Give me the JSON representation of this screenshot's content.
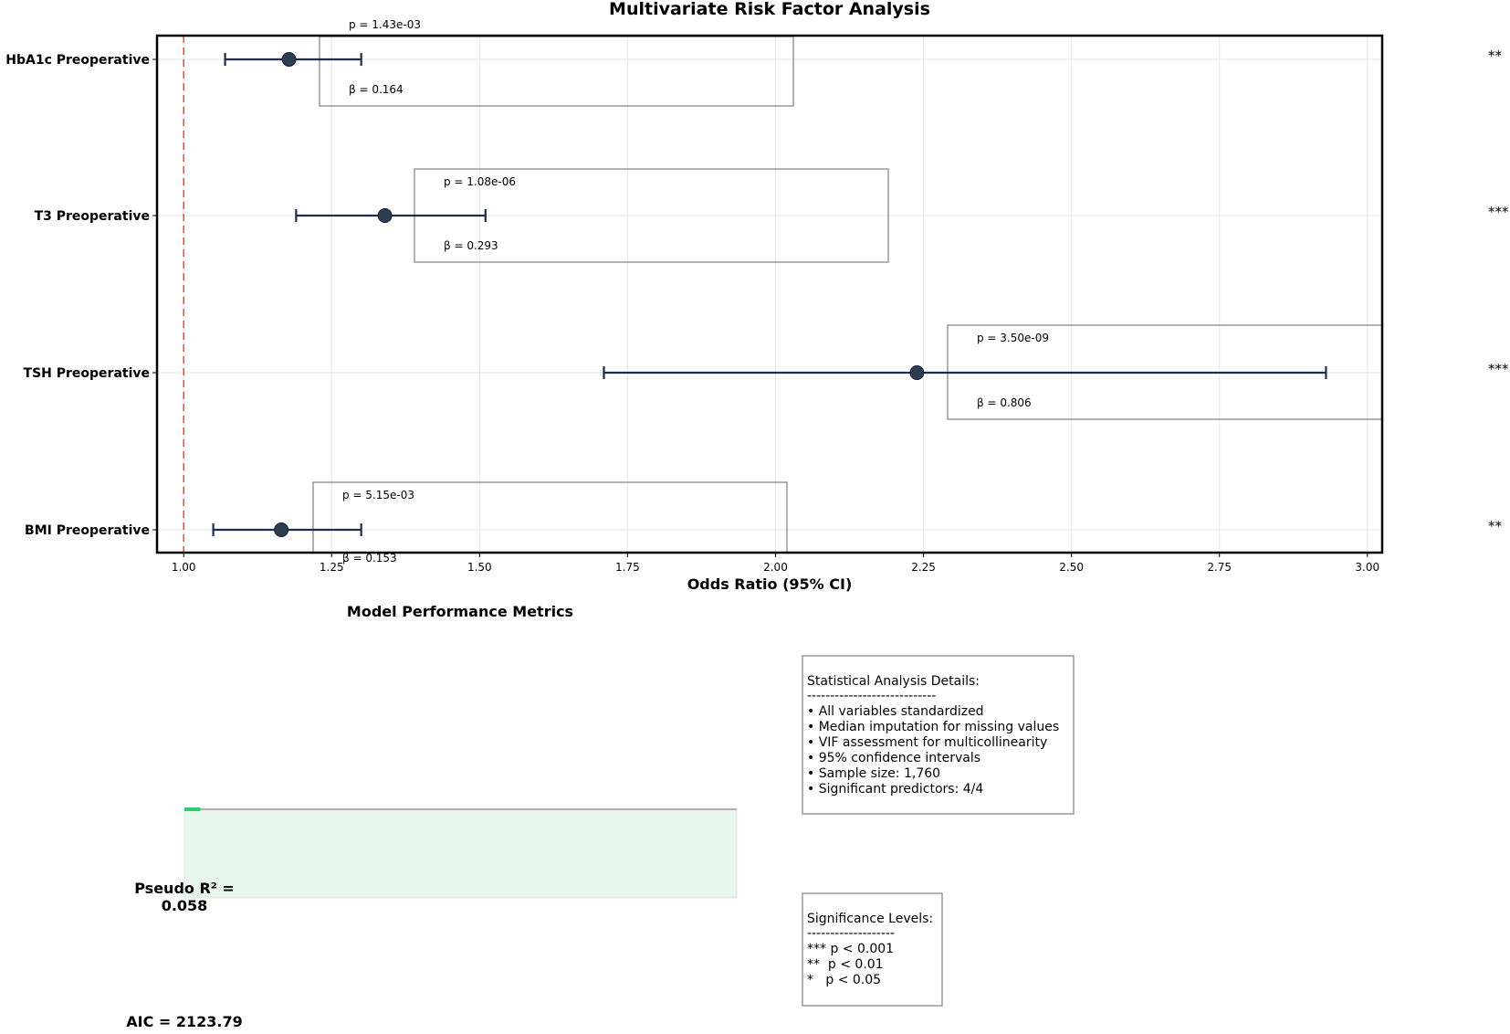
{
  "chart_data": [
    {
      "type": "forest",
      "title": "Multivariate Risk Factor Analysis",
      "xlabel": "Odds Ratio (95% CI)",
      "xlim": [
        0.955,
        3.025
      ],
      "x_ticks": [
        1.0,
        1.25,
        1.5,
        1.75,
        2.0,
        2.25,
        2.5,
        2.75,
        3.0
      ],
      "x_tick_labels": [
        "1.00",
        "1.25",
        "1.50",
        "1.75",
        "2.00",
        "2.25",
        "2.50",
        "2.75",
        "3.00"
      ],
      "reference_line": 1.0,
      "grid": true,
      "predictors": [
        {
          "label": "HbA1c Preoperative",
          "or": 1.178,
          "ci_low": 1.07,
          "ci_high": 1.3,
          "p_text": "p = 1.43e-03",
          "beta_text": "β = 0.164",
          "stars": "**"
        },
        {
          "label": "T3 Preoperative",
          "or": 1.34,
          "ci_low": 1.19,
          "ci_high": 1.51,
          "p_text": "p = 1.08e-06",
          "beta_text": "β = 0.293",
          "stars": "***"
        },
        {
          "label": "TSH Preoperative",
          "or": 2.239,
          "ci_low": 1.71,
          "ci_high": 2.93,
          "p_text": "p = 3.50e-09",
          "beta_text": "β = 0.806",
          "stars": "***"
        },
        {
          "label": "BMI Preoperative",
          "or": 1.165,
          "ci_low": 1.05,
          "ci_high": 1.3,
          "p_text": "p = 5.15e-03",
          "beta_text": "β = 0.153",
          "stars": "**"
        }
      ]
    },
    {
      "type": "bar",
      "title": "Model Performance Metrics",
      "metrics": [
        {
          "name": "Pseudo R²",
          "value": 0.058
        }
      ],
      "xlim": [
        0,
        1
      ]
    }
  ],
  "metrics_text": {
    "pseudo_r2_line1": "Pseudo R² =",
    "pseudo_r2_line2": "0.058",
    "aic": "AIC = 2123.79"
  },
  "stats_box": {
    "title": "Statistical Analysis Details:",
    "rule": "----------------------------",
    "lines": [
      "• All variables standardized",
      "• Median imputation for missing values",
      "• VIF assessment for multicollinearity",
      "• 95% confidence intervals",
      "• Sample size: 1,760",
      "• Significant predictors: 4/4"
    ]
  },
  "sig_box": {
    "title": "Significance Levels:",
    "rule": "-------------------",
    "lines": [
      "*** p < 0.001",
      "**  p < 0.01",
      "*   p < 0.05"
    ]
  },
  "colors": {
    "point": "#2c3e50",
    "ci_line": "#1f2d4a",
    "reference": "#e74c3c",
    "grid": "#e6e6e6",
    "bar": "#2ecc71",
    "bar_fill": "#e8f7ee"
  }
}
